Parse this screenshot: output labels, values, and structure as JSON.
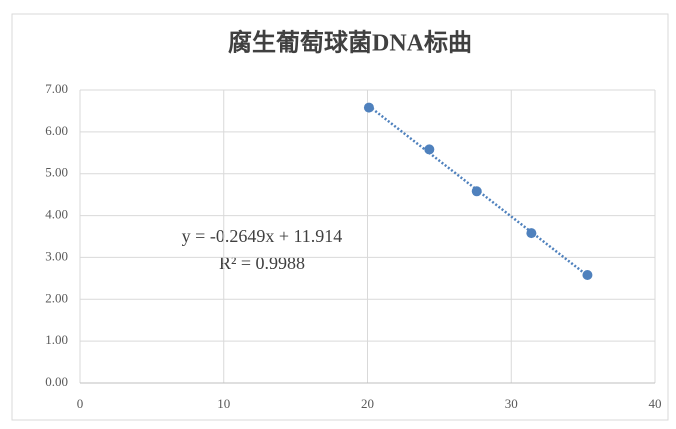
{
  "chart_data": {
    "type": "scatter",
    "title": "腐生葡萄球菌DNA标曲",
    "series": [
      {
        "color": "#4f81bd",
        "x": [
          20.1,
          24.3,
          27.6,
          31.4,
          35.3
        ],
        "values": [
          6.58,
          5.58,
          4.58,
          3.58,
          2.58
        ]
      }
    ],
    "xlim": [
      0,
      40
    ],
    "xticks": [
      0,
      10,
      20,
      30,
      40
    ],
    "ylim": [
      0,
      7
    ],
    "yticks": [
      {
        "value": 0,
        "label": "0.00"
      },
      {
        "value": 1,
        "label": "1.00"
      },
      {
        "value": 2,
        "label": "2.00"
      },
      {
        "value": 3,
        "label": "3.00"
      },
      {
        "value": 4,
        "label": "4.00"
      },
      {
        "value": 5,
        "label": "5.00"
      },
      {
        "value": 6,
        "label": "6.00"
      },
      {
        "value": 7,
        "label": "7.00"
      }
    ],
    "grid": true,
    "trendline": true,
    "annotations": [
      "y = -0.2649x + 11.914",
      "R² = 0.9988"
    ]
  }
}
